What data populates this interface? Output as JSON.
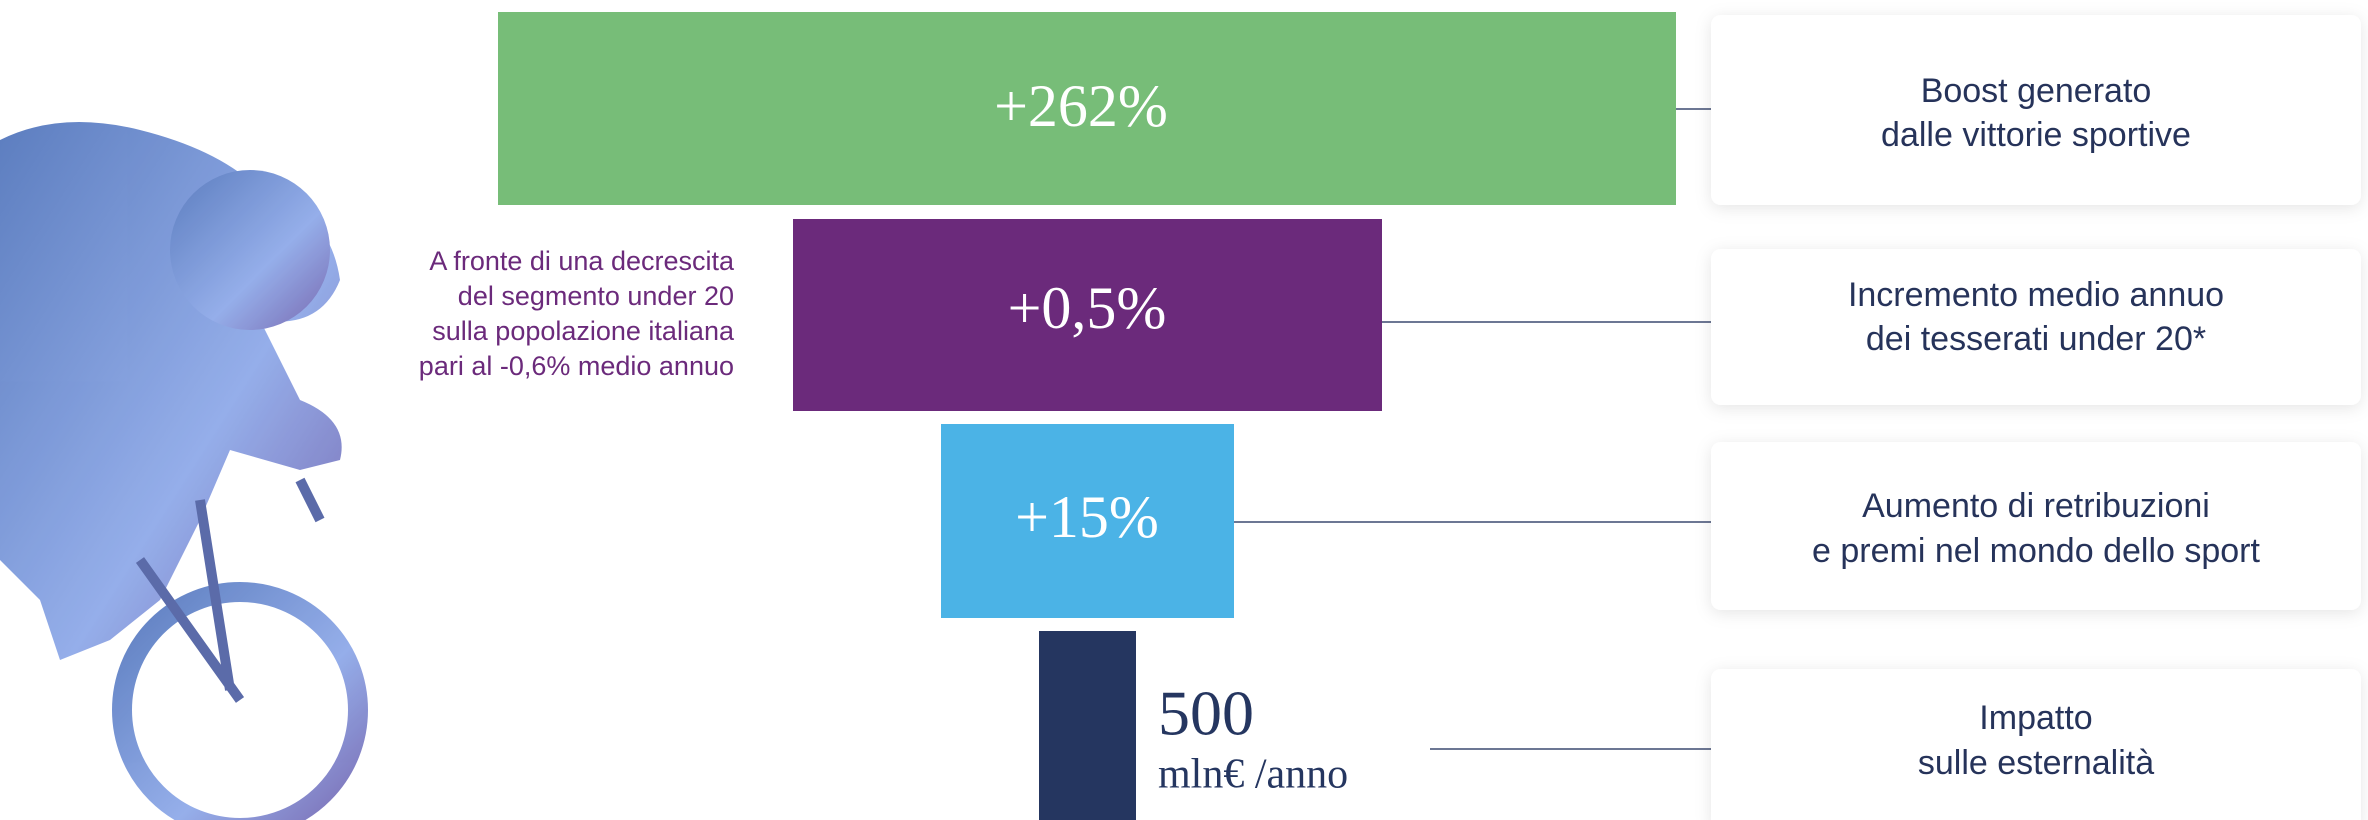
{
  "items": [
    {
      "value": "+262%",
      "description": [
        "Boost generato",
        "dalle vittorie sportive"
      ]
    },
    {
      "value": "+0,5%",
      "description": [
        "Incremento medio annuo",
        "dei tesserati under 20*"
      ]
    },
    {
      "value": "+15%",
      "description": [
        "Aumento di retribuzioni",
        "e premi nel mondo dello sport"
      ]
    },
    {
      "value": "500",
      "unit": "mln€ /anno",
      "description": [
        "Impatto",
        "sulle esternalità"
      ]
    }
  ],
  "note": [
    "A fronte di una decrescita",
    "del segmento under 20",
    "sulla popolazione italiana",
    "pari al -0,6% medio annuo"
  ]
}
